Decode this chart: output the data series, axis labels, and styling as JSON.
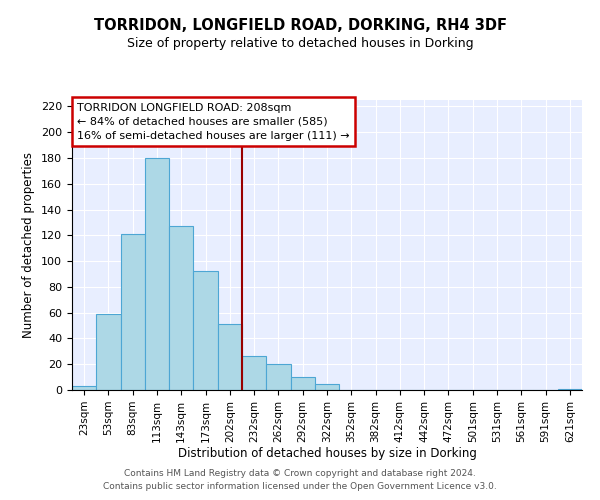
{
  "title": "TORRIDON, LONGFIELD ROAD, DORKING, RH4 3DF",
  "subtitle": "Size of property relative to detached houses in Dorking",
  "xlabel": "Distribution of detached houses by size in Dorking",
  "ylabel": "Number of detached properties",
  "bar_labels": [
    "23sqm",
    "53sqm",
    "83sqm",
    "113sqm",
    "143sqm",
    "173sqm",
    "202sqm",
    "232sqm",
    "262sqm",
    "292sqm",
    "322sqm",
    "352sqm",
    "382sqm",
    "412sqm",
    "442sqm",
    "472sqm",
    "501sqm",
    "531sqm",
    "561sqm",
    "591sqm",
    "621sqm"
  ],
  "bar_values": [
    3,
    59,
    121,
    180,
    127,
    92,
    51,
    26,
    20,
    10,
    5,
    0,
    0,
    0,
    0,
    0,
    0,
    0,
    0,
    0,
    1
  ],
  "bar_color": "#add8e6",
  "bar_edgecolor": "#4da6d4",
  "vline_x": 6.5,
  "vline_color": "#990000",
  "annotation_title": "TORRIDON LONGFIELD ROAD: 208sqm",
  "annotation_line2": "← 84% of detached houses are smaller (585)",
  "annotation_line3": "16% of semi-detached houses are larger (111) →",
  "annotation_box_facecolor": "white",
  "annotation_box_edgecolor": "#cc0000",
  "ylim": [
    0,
    225
  ],
  "yticks": [
    0,
    20,
    40,
    60,
    80,
    100,
    120,
    140,
    160,
    180,
    200,
    220
  ],
  "bg_color": "#e8eeff",
  "footer_line1": "Contains HM Land Registry data © Crown copyright and database right 2024.",
  "footer_line2": "Contains public sector information licensed under the Open Government Licence v3.0."
}
